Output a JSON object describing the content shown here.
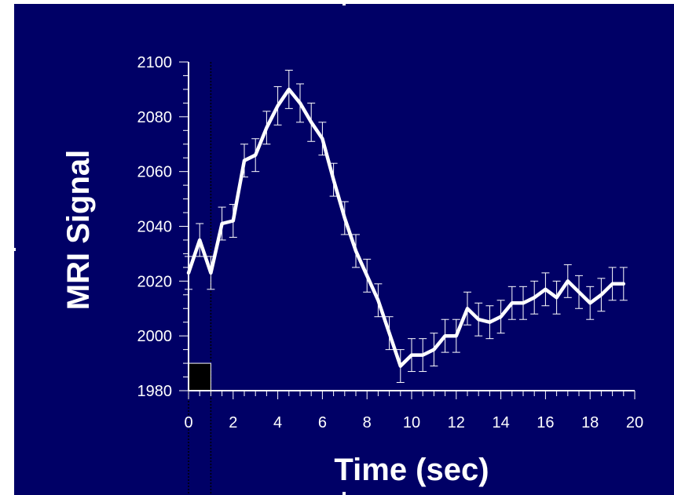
{
  "chart_data": {
    "type": "line",
    "xlabel": "Time (sec)",
    "ylabel": "MRI Signal",
    "xlim": [
      0,
      20
    ],
    "ylim": [
      1980,
      2100
    ],
    "x_ticks": [
      0,
      2,
      4,
      6,
      8,
      10,
      12,
      14,
      16,
      18,
      20
    ],
    "y_ticks": [
      1980,
      2000,
      2020,
      2040,
      2060,
      2080,
      2100
    ],
    "x_tick_labels": [
      "0",
      "2",
      "4",
      "6",
      "8",
      "10",
      "12",
      "14",
      "16",
      "18",
      "20"
    ],
    "y_tick_labels": [
      "1980",
      "2000",
      "2020",
      "2040",
      "2060",
      "2080",
      "2100"
    ],
    "grid": false,
    "stimulus": {
      "start": 0,
      "end": 1,
      "color": "#000000"
    },
    "series": [
      {
        "color": "#ffffff",
        "x": [
          0,
          0.5,
          1,
          1.5,
          2,
          2.5,
          3,
          3.5,
          4,
          4.5,
          5,
          5.5,
          6,
          6.5,
          7,
          7.5,
          8,
          8.5,
          9,
          9.5,
          10,
          10.5,
          11,
          11.5,
          12,
          12.5,
          13,
          13.5,
          14,
          14.5,
          15,
          15.5,
          16,
          16.5,
          17,
          17.5,
          18,
          18.5,
          19,
          19.5
        ],
        "y": [
          2023,
          2035,
          2023,
          2041,
          2042,
          2064,
          2066,
          2076,
          2084,
          2090,
          2085,
          2078,
          2072,
          2057,
          2043,
          2031,
          2022,
          2013,
          2001,
          1989,
          1993,
          1993,
          1995,
          2000,
          2000,
          2010,
          2006,
          2005,
          2007,
          2012,
          2012,
          2014,
          2017,
          2014,
          2020,
          2016,
          2012,
          2015,
          2019,
          2019
        ],
        "error": [
          6,
          6,
          6,
          6,
          6,
          6,
          6,
          6,
          7,
          7,
          7,
          7,
          6,
          6,
          6,
          6,
          6,
          6,
          6,
          6,
          6,
          6,
          6,
          6,
          6,
          6,
          6,
          6,
          6,
          6,
          6,
          6,
          6,
          6,
          6,
          6,
          6,
          6,
          6,
          6
        ]
      }
    ]
  }
}
